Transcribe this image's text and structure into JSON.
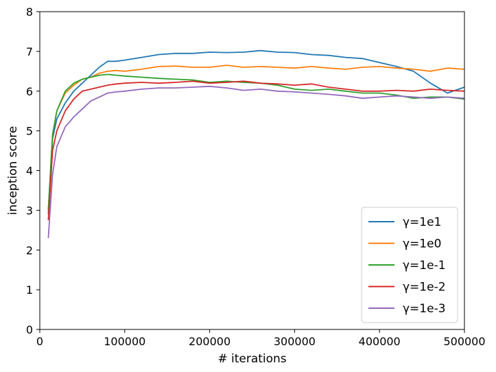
{
  "chart_data": {
    "type": "line",
    "title": "",
    "xlabel": "# iterations",
    "ylabel": "inception score",
    "xlim": [
      0,
      500000
    ],
    "ylim": [
      0,
      8
    ],
    "xticks": [
      0,
      100000,
      200000,
      300000,
      400000,
      500000
    ],
    "xtick_labels": [
      "0",
      "100000",
      "200000",
      "300000",
      "400000",
      "500000"
    ],
    "yticks": [
      0,
      1,
      2,
      3,
      4,
      5,
      6,
      7,
      8
    ],
    "ytick_labels": [
      "0",
      "1",
      "2",
      "3",
      "4",
      "5",
      "6",
      "7",
      "8"
    ],
    "grid": false,
    "legend_position": "lower right",
    "series": [
      {
        "name": "γ=1e1",
        "color": "#1f77b4",
        "x": [
          10000,
          15000,
          20000,
          30000,
          40000,
          50000,
          60000,
          70000,
          80000,
          90000,
          100000,
          120000,
          140000,
          160000,
          180000,
          200000,
          220000,
          240000,
          260000,
          280000,
          300000,
          320000,
          340000,
          360000,
          380000,
          400000,
          420000,
          440000,
          460000,
          480000,
          500000
        ],
        "y": [
          2.9,
          4.8,
          5.3,
          5.7,
          6.0,
          6.2,
          6.4,
          6.6,
          6.75,
          6.75,
          6.78,
          6.85,
          6.92,
          6.95,
          6.95,
          6.98,
          6.97,
          6.98,
          7.02,
          6.98,
          6.97,
          6.92,
          6.9,
          6.85,
          6.82,
          6.72,
          6.62,
          6.5,
          6.2,
          5.95,
          6.1
        ]
      },
      {
        "name": "γ=1e0",
        "color": "#ff7f0e",
        "x": [
          10000,
          15000,
          20000,
          30000,
          40000,
          50000,
          60000,
          70000,
          80000,
          90000,
          100000,
          120000,
          140000,
          160000,
          180000,
          200000,
          220000,
          240000,
          260000,
          280000,
          300000,
          320000,
          340000,
          360000,
          380000,
          400000,
          420000,
          440000,
          460000,
          480000,
          500000
        ],
        "y": [
          3.0,
          4.9,
          5.5,
          5.95,
          6.15,
          6.3,
          6.35,
          6.45,
          6.5,
          6.52,
          6.5,
          6.55,
          6.62,
          6.63,
          6.6,
          6.6,
          6.65,
          6.6,
          6.62,
          6.6,
          6.58,
          6.62,
          6.58,
          6.55,
          6.6,
          6.62,
          6.58,
          6.55,
          6.5,
          6.58,
          6.55
        ]
      },
      {
        "name": "γ=1e-1",
        "color": "#2ca02c",
        "x": [
          10000,
          15000,
          20000,
          30000,
          40000,
          50000,
          60000,
          70000,
          80000,
          90000,
          100000,
          120000,
          140000,
          160000,
          180000,
          200000,
          220000,
          240000,
          260000,
          280000,
          300000,
          320000,
          340000,
          360000,
          380000,
          400000,
          420000,
          440000,
          460000,
          480000,
          500000
        ],
        "y": [
          3.0,
          4.9,
          5.5,
          6.0,
          6.2,
          6.3,
          6.35,
          6.4,
          6.42,
          6.4,
          6.38,
          6.35,
          6.32,
          6.3,
          6.28,
          6.22,
          6.25,
          6.22,
          6.2,
          6.15,
          6.05,
          6.02,
          6.05,
          6.0,
          5.95,
          5.95,
          5.9,
          5.82,
          5.85,
          5.85,
          5.8
        ]
      },
      {
        "name": "γ=1e-2",
        "color": "#d62728",
        "x": [
          10000,
          15000,
          20000,
          30000,
          40000,
          50000,
          60000,
          70000,
          80000,
          90000,
          100000,
          120000,
          140000,
          160000,
          180000,
          200000,
          220000,
          240000,
          260000,
          280000,
          300000,
          320000,
          340000,
          360000,
          380000,
          400000,
          420000,
          440000,
          460000,
          480000,
          500000
        ],
        "y": [
          2.75,
          4.5,
          5.0,
          5.5,
          5.8,
          6.0,
          6.05,
          6.1,
          6.15,
          6.18,
          6.2,
          6.22,
          6.2,
          6.22,
          6.25,
          6.2,
          6.22,
          6.25,
          6.2,
          6.18,
          6.15,
          6.18,
          6.1,
          6.05,
          6.0,
          6.0,
          6.02,
          6.0,
          6.05,
          6.02,
          6.0
        ]
      },
      {
        "name": "γ=1e-3",
        "color": "#9467bd",
        "x": [
          10000,
          15000,
          20000,
          30000,
          40000,
          50000,
          60000,
          70000,
          80000,
          90000,
          100000,
          120000,
          140000,
          160000,
          180000,
          200000,
          220000,
          240000,
          260000,
          280000,
          300000,
          320000,
          340000,
          360000,
          380000,
          400000,
          420000,
          440000,
          460000,
          480000,
          500000
        ],
        "y": [
          2.3,
          3.9,
          4.6,
          5.1,
          5.35,
          5.55,
          5.75,
          5.85,
          5.95,
          5.98,
          6.0,
          6.05,
          6.08,
          6.08,
          6.1,
          6.12,
          6.08,
          6.02,
          6.05,
          6.0,
          5.98,
          5.95,
          5.92,
          5.88,
          5.82,
          5.85,
          5.88,
          5.85,
          5.82,
          5.85,
          5.82
        ]
      }
    ]
  }
}
